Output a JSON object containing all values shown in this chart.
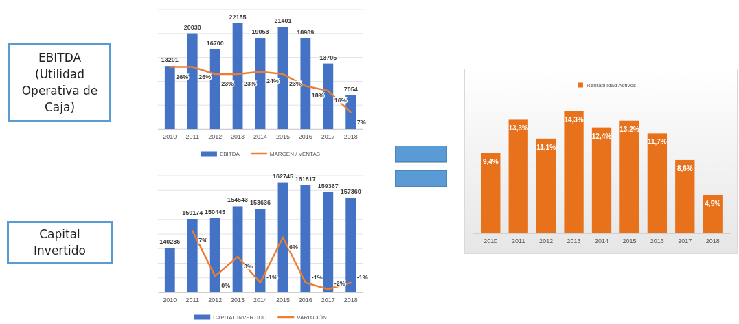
{
  "chart_data": [
    {
      "type": "other",
      "title": "EBITDA (Utilidad Operativa de Caja)"
    },
    {
      "type": "bar",
      "categories": [
        "2010",
        "2011",
        "2012",
        "2013",
        "2014",
        "2015",
        "2016",
        "2017",
        "2018"
      ],
      "ylim": [
        0,
        25000
      ],
      "yticks": [
        {
          "value": 0,
          "label": null
        },
        {
          "value": 5000,
          "label": null
        },
        {
          "value": 10000,
          "label": null
        },
        {
          "value": 15000,
          "label": null
        },
        {
          "value": 20000,
          "label": null
        },
        {
          "value": 25000,
          "label": null
        }
      ],
      "y2lim": [
        0,
        50
      ],
      "grid": "y",
      "legend": "bottom",
      "tick_labels": "x",
      "series": [
        {
          "name": "EBITDA",
          "color": "#4472c4",
          "values": [
            13201,
            20030,
            16700,
            22155,
            19053,
            21401,
            18989,
            13705,
            7054
          ],
          "value_labels": [
            "13201",
            "20030",
            "16700",
            "22155",
            "19053",
            "21401",
            "18989",
            "13705",
            "7054"
          ]
        },
        {
          "name": "MARGEN / VENTAS",
          "type": "line",
          "axis": "y2",
          "color": "#ed7d31",
          "values": [
            26,
            26,
            23,
            23,
            24,
            23,
            18,
            16,
            7
          ],
          "value_labels": [
            "26%",
            "26%",
            "23%",
            "23%",
            "24%",
            "23%",
            "18%",
            "16%",
            "7%"
          ]
        }
      ]
    },
    {
      "type": "other",
      "title": "Capital Invertido"
    },
    {
      "type": "bar",
      "categories": [
        "2010",
        "2011",
        "2012",
        "2013",
        "2014",
        "2015",
        "2016",
        "2017",
        "2018"
      ],
      "ylim": [
        125000,
        165000
      ],
      "yticks": [
        {
          "value": 125000,
          "label": null
        },
        {
          "value": 130000,
          "label": null
        },
        {
          "value": 135000,
          "label": null
        },
        {
          "value": 140000,
          "label": null
        },
        {
          "value": 145000,
          "label": null
        },
        {
          "value": 150000,
          "label": null
        },
        {
          "value": 155000,
          "label": null
        },
        {
          "value": 160000,
          "label": null
        },
        {
          "value": 165000,
          "label": null
        }
      ],
      "y2lim": [
        -2.5,
        15.5
      ],
      "grid": "y",
      "legend": "bottom",
      "tick_labels": "x",
      "series": [
        {
          "name": "CAPITAL INVERTIDO",
          "color": "#4472c4",
          "values": [
            140286,
            150174,
            150445,
            154543,
            153636,
            162745,
            161817,
            159367,
            157360
          ],
          "value_labels": [
            "140286",
            "150174",
            "150445",
            "154543",
            "153636",
            "162745",
            "161817",
            "159367",
            "157360"
          ]
        },
        {
          "name": "VARIACIÓN",
          "type": "line",
          "axis": "y2",
          "color": "#ed7d31",
          "values": [
            null,
            7,
            0,
            3,
            -1,
            6,
            -1,
            -2,
            -1
          ],
          "value_labels": [
            null,
            "7%",
            "0%",
            "3%",
            "-1%",
            "6%",
            "-1%",
            "-2%",
            "-1%"
          ]
        }
      ]
    },
    {
      "type": "bar",
      "categories": [
        "2010",
        "2011",
        "2012",
        "2013",
        "2014",
        "2015",
        "2016",
        "2017",
        "2018"
      ],
      "legend": "top",
      "tick_labels": "x",
      "series": [
        {
          "name": "Rentabilidad Activos",
          "color": "#e8711c",
          "values": [
            9.4,
            13.3,
            11.1,
            14.3,
            12.4,
            13.2,
            11.7,
            8.6,
            4.5
          ],
          "value_labels": [
            "9,4%",
            "13,3%",
            "11,1%",
            "14,3%",
            "12,4%",
            "13,2%",
            "11,7%",
            "8,6%",
            "4,5%"
          ]
        }
      ]
    }
  ]
}
